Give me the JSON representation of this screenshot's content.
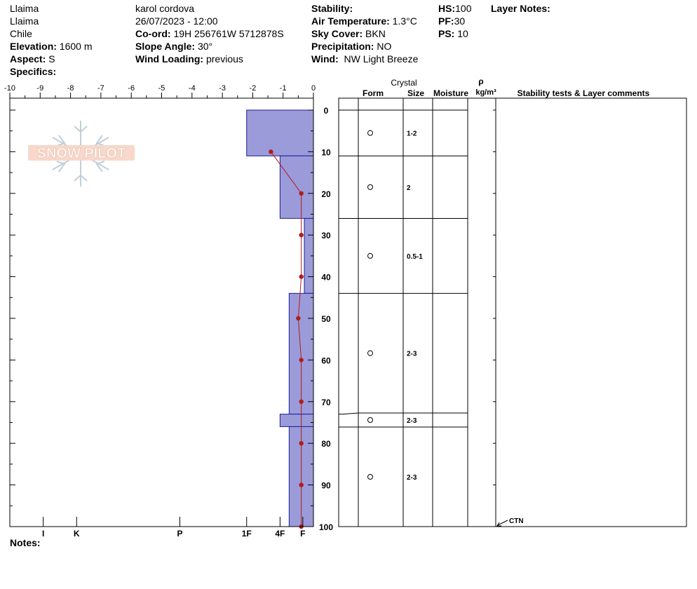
{
  "header": {
    "col1": {
      "line1": "Llaima",
      "line2": "Llaima",
      "line3": "Chile",
      "elevation_label": "Elevation:",
      "elevation_value": "1600 m",
      "aspect_label": "Aspect:",
      "aspect_value": "S",
      "specifics_label": "Specifics:"
    },
    "col2": {
      "observer": "karol cordova",
      "datetime": "26/07/2023 - 12:00",
      "coord_label": "Co-ord:",
      "coord_value": "19H 256761W 5712878S",
      "slope_label": "Slope Angle:",
      "slope_value": "30°",
      "wind_loading_label": "Wind Loading:",
      "wind_loading_value": "previous"
    },
    "col3": {
      "stability_label": "Stability:",
      "air_temp_label": "Air Temperature:",
      "air_temp_value": "1.3°C",
      "sky_label": "Sky Cover:",
      "sky_value": "BKN",
      "precip_label": "Precipitation:",
      "precip_value": "NO",
      "wind_label": "Wind:",
      "wind_value": "NW Light Breeze"
    },
    "col4": {
      "hs_label": "HS:",
      "hs_value": "100",
      "pf_label": "PF:",
      "pf_value": "30",
      "ps_label": "PS:",
      "ps_value": "10"
    },
    "layer_notes_label": "Layer Notes:"
  },
  "logo_text": "SNOW PILOT",
  "notes_label": "Notes:",
  "columns": {
    "crystal": "Crystal",
    "form": "Form",
    "size": "Size",
    "moisture": "Moisture",
    "rho": "ρ",
    "density_unit": "kg/m³",
    "stability": "Stability tests & Layer comments"
  },
  "colors": {
    "layer_fill": "#9b9bd9",
    "layer_stroke": "#1c1c9e",
    "temp_line": "#b01c1c"
  },
  "chart_data": {
    "type": "snow-profile",
    "temp_axis": {
      "range": [
        -10,
        0
      ],
      "ticks": [
        -10,
        -9,
        -8,
        -7,
        -6,
        -5,
        -4,
        -3,
        -2,
        -1,
        0
      ],
      "labels": [
        "-10",
        "-9",
        "-8",
        "-7",
        "-6",
        "-5",
        "-4",
        "-3",
        "-2",
        "-1",
        "0"
      ]
    },
    "depth_axis": {
      "range": [
        0,
        100
      ],
      "ticks": [
        0,
        10,
        20,
        30,
        40,
        50,
        60,
        70,
        80,
        90,
        100
      ],
      "labels": [
        "0",
        "10",
        "20",
        "30",
        "40",
        "50",
        "60",
        "70",
        "80",
        "90",
        "100"
      ]
    },
    "hardness_axis": {
      "labels": [
        "I",
        "K",
        "P",
        "1F",
        "4F",
        "F"
      ],
      "temp_positions": [
        -8.9,
        -7.8,
        -4.4,
        -2.2,
        -1.1,
        -0.35
      ]
    },
    "layers": [
      {
        "top": 0,
        "bottom": 11,
        "hardness_temp": -2.2,
        "size": "1-2"
      },
      {
        "top": 11,
        "bottom": 26,
        "hardness_temp": -1.1,
        "size": "2"
      },
      {
        "top": 26,
        "bottom": 44,
        "hardness_temp": -0.3,
        "size": "0.5-1"
      },
      {
        "top": 44,
        "bottom": 73,
        "hardness_temp": -0.8,
        "size": "2-3"
      },
      {
        "top": 73,
        "bottom": 76,
        "hardness_temp": -1.1,
        "size": "2-3"
      },
      {
        "top": 76,
        "bottom": 100,
        "hardness_temp": -0.8,
        "size": "2-3"
      }
    ],
    "temperature_profile": [
      {
        "depth": 10,
        "temp": -1.4
      },
      {
        "depth": 20,
        "temp": -0.4
      },
      {
        "depth": 30,
        "temp": -0.4
      },
      {
        "depth": 40,
        "temp": -0.4
      },
      {
        "depth": 50,
        "temp": -0.5
      },
      {
        "depth": 60,
        "temp": -0.4
      },
      {
        "depth": 70,
        "temp": -0.4
      },
      {
        "depth": 80,
        "temp": -0.4
      },
      {
        "depth": 90,
        "temp": -0.4
      },
      {
        "depth": 100,
        "temp": -0.4
      }
    ],
    "stability_tests": [
      {
        "depth": 100,
        "label": "CTN"
      }
    ]
  }
}
